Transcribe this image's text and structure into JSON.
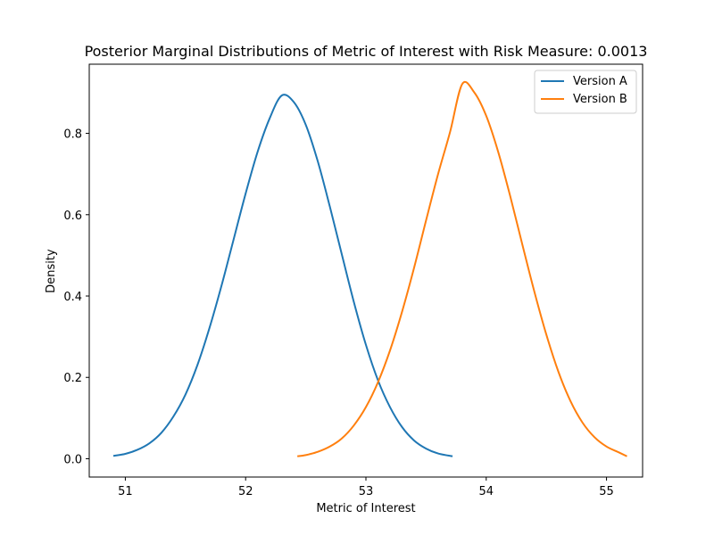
{
  "chart_data": {
    "type": "line",
    "title": "Posterior Marginal Distributions of Metric of Interest with Risk Measure: 0.0013",
    "xlabel": "Metric of Interest",
    "ylabel": "Density",
    "xlim": [
      50.7,
      55.3
    ],
    "ylim": [
      -0.045,
      0.97
    ],
    "xticks": [
      51,
      52,
      53,
      54,
      55
    ],
    "yticks": [
      0.0,
      0.2,
      0.4,
      0.6,
      0.8
    ],
    "xtick_labels": [
      "51",
      "52",
      "53",
      "54",
      "55"
    ],
    "ytick_labels": [
      "0.0",
      "0.2",
      "0.4",
      "0.6",
      "0.8"
    ],
    "grid": false,
    "legend_position": "top-right",
    "series": [
      {
        "name": "Version A",
        "color": "#1f77b4",
        "x": [
          50.9,
          51.0,
          51.1,
          51.2,
          51.3,
          51.4,
          51.5,
          51.6,
          51.7,
          51.8,
          51.9,
          52.0,
          52.1,
          52.2,
          52.3,
          52.4,
          52.5,
          52.6,
          52.7,
          52.8,
          52.9,
          53.0,
          53.1,
          53.2,
          53.3,
          53.4,
          53.5,
          53.6,
          53.72
        ],
        "y": [
          0.007,
          0.012,
          0.022,
          0.038,
          0.064,
          0.104,
          0.158,
          0.231,
          0.322,
          0.426,
          0.539,
          0.652,
          0.755,
          0.837,
          0.893,
          0.877,
          0.821,
          0.731,
          0.62,
          0.502,
          0.385,
          0.28,
          0.193,
          0.127,
          0.078,
          0.045,
          0.025,
          0.013,
          0.006
        ]
      },
      {
        "name": "Version B",
        "color": "#ff7f0e",
        "x": [
          52.43,
          52.5,
          52.6,
          52.7,
          52.8,
          52.9,
          53.0,
          53.1,
          53.2,
          53.3,
          53.4,
          53.5,
          53.6,
          53.7,
          53.8,
          53.9,
          54.0,
          54.1,
          54.2,
          54.3,
          54.4,
          54.5,
          54.6,
          54.7,
          54.8,
          54.9,
          55.0,
          55.1,
          55.17
        ],
        "y": [
          0.006,
          0.009,
          0.017,
          0.03,
          0.05,
          0.082,
          0.127,
          0.188,
          0.266,
          0.361,
          0.469,
          0.586,
          0.7,
          0.804,
          0.921,
          0.901,
          0.843,
          0.754,
          0.645,
          0.527,
          0.411,
          0.305,
          0.214,
          0.142,
          0.089,
          0.053,
          0.03,
          0.016,
          0.006
        ]
      }
    ]
  }
}
